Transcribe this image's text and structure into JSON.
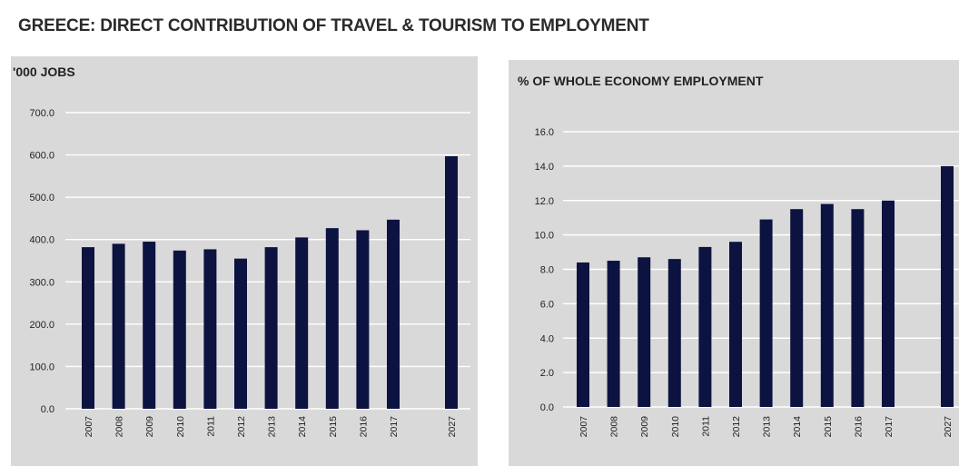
{
  "title": "GREECE: DIRECT CONTRIBUTION OF  TRAVEL & TOURISM TO EMPLOYMENT",
  "colors": {
    "bar": "#0d1340",
    "panel": "#d9d9d9",
    "grid": "#ffffff"
  },
  "chart_data": [
    {
      "type": "bar",
      "title": "'000 JOBS",
      "xlabel": "",
      "ylabel": "",
      "ylim": [
        0,
        700
      ],
      "yticks": [
        "0.0",
        "100.0",
        "200.0",
        "300.0",
        "400.0",
        "500.0",
        "600.0",
        "700.0"
      ],
      "grid": true,
      "categories": [
        "2007",
        "2008",
        "2009",
        "2010",
        "2011",
        "2012",
        "2013",
        "2014",
        "2015",
        "2016",
        "2017",
        "2027"
      ],
      "values": [
        382,
        390,
        395,
        374,
        377,
        355,
        382,
        405,
        427,
        422,
        447,
        597
      ]
    },
    {
      "type": "bar",
      "title": "% OF WHOLE ECONOMY EMPLOYMENT",
      "xlabel": "",
      "ylabel": "",
      "ylim": [
        0,
        16
      ],
      "yticks": [
        "0.0",
        "2.0",
        "4.0",
        "6.0",
        "8.0",
        "10.0",
        "12.0",
        "14.0",
        "16.0"
      ],
      "grid": true,
      "categories": [
        "2007",
        "2008",
        "2009",
        "2010",
        "2011",
        "2012",
        "2013",
        "2014",
        "2015",
        "2016",
        "2017",
        "2027"
      ],
      "values": [
        8.4,
        8.5,
        8.7,
        8.6,
        9.3,
        9.6,
        10.9,
        11.5,
        11.8,
        11.5,
        12.0,
        14.0
      ]
    }
  ]
}
